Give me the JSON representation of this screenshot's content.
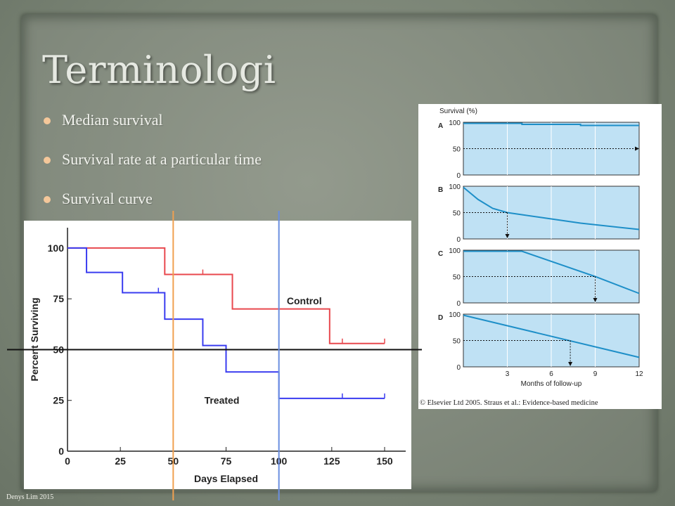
{
  "slide": {
    "title": "Terminologi",
    "bullets": [
      "Median survival",
      "Survival rate at a particular time",
      "Survival curve"
    ],
    "footer": "Denys Lim 2015",
    "colors": {
      "bullet": "#f4c79a",
      "title": "#e6e9e2",
      "background": "#848c7f"
    }
  },
  "chart_data": [
    {
      "type": "line",
      "step": true,
      "title": "",
      "xlabel": "Days Elapsed",
      "ylabel": "Percent Surviving",
      "xlim": [
        0,
        150
      ],
      "ylim": [
        0,
        110
      ],
      "xticks": [
        0,
        25,
        50,
        75,
        100,
        125,
        150
      ],
      "yticks": [
        0,
        25,
        50,
        75,
        100
      ],
      "grid": false,
      "series": [
        {
          "name": "Control",
          "color": "#e8484e",
          "x": [
            0,
            46,
            46,
            78,
            78,
            124,
            124,
            150
          ],
          "y": [
            100,
            100,
            87,
            87,
            70,
            70,
            53,
            53
          ],
          "censored_x": [
            64,
            130,
            150
          ],
          "censored_y": [
            87,
            53,
            53
          ]
        },
        {
          "name": "Treated",
          "color": "#3a3cf0",
          "x": [
            0,
            9,
            9,
            26,
            26,
            46,
            46,
            64,
            64,
            75,
            75,
            100,
            100,
            150
          ],
          "y": [
            100,
            100,
            88,
            88,
            78,
            78,
            65,
            65,
            52,
            52,
            39,
            39,
            26,
            26
          ],
          "censored_x": [
            43,
            130,
            150
          ],
          "censored_y": [
            78,
            26,
            26
          ]
        }
      ],
      "reference_lines": [
        {
          "orientation": "horizontal",
          "y": 50,
          "color": "#111111"
        },
        {
          "orientation": "vertical",
          "x": 50,
          "color": "#f0a050"
        },
        {
          "orientation": "vertical",
          "x": 100,
          "color": "#6a8ee0"
        }
      ]
    },
    {
      "type": "line",
      "title": "Survival (%)",
      "xlabel": "Months of follow-up",
      "ylabel": "",
      "xlim": [
        0,
        12
      ],
      "ylim": [
        0,
        100
      ],
      "xticks": [
        3,
        6,
        9,
        12
      ],
      "yticks": [
        0,
        50,
        100
      ],
      "fill_color": "#bfe1f4",
      "line_color": "#1e8fc8",
      "panels": [
        {
          "label": "A",
          "x": [
            0,
            4,
            4,
            8,
            8,
            12
          ],
          "y": [
            98,
            98,
            96,
            96,
            94,
            94
          ],
          "median_x": null
        },
        {
          "label": "B",
          "x": [
            0,
            1,
            2,
            3,
            5,
            8,
            12
          ],
          "y": [
            98,
            75,
            58,
            50,
            42,
            30,
            18
          ],
          "median_x": 3
        },
        {
          "label": "C",
          "x": [
            0,
            4,
            9,
            12
          ],
          "y": [
            98,
            98,
            50,
            18
          ],
          "median_x": 9
        },
        {
          "label": "D",
          "x": [
            0,
            12
          ],
          "y": [
            98,
            18
          ],
          "median_x": 7.3
        }
      ],
      "caption": "© Elsevier Ltd 2005. Straus et al.: Evidence-based medicine"
    }
  ]
}
